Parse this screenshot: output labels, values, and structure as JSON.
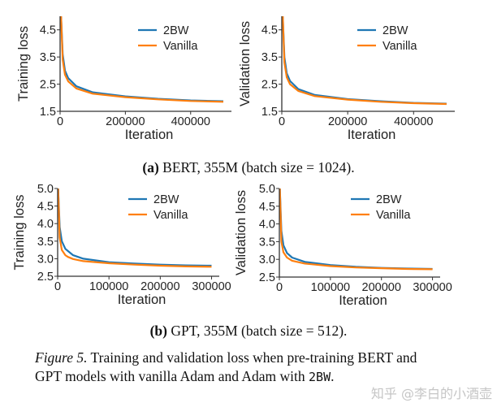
{
  "subcaptions": {
    "a_label": "(a)",
    "a_text": " BERT, 355M (batch size = 1024).",
    "b_label": "(b)",
    "b_text": " GPT, 355M (batch size = 512)."
  },
  "caption": {
    "figure_label": "Figure 5.",
    "line1": " Training and validation loss when pre-training BERT and",
    "line2": "GPT models with vanilla Adam and Adam with ",
    "code": "2BW",
    "end": "."
  },
  "watermark": "知乎 @李白的小酒壶",
  "colors": {
    "2BW": "#1f77b4",
    "Vanilla": "#ff7f0e",
    "axis": "#333333"
  },
  "chart_data": [
    {
      "type": "line",
      "panel": "(a) BERT",
      "xlabel": "Iteration",
      "ylabel": "Training loss",
      "xlim": [
        0,
        525000
      ],
      "ylim": [
        1.5,
        5.0
      ],
      "xticks": [
        0,
        200000,
        400000
      ],
      "xtick_labels": [
        "0",
        "200000",
        "400000"
      ],
      "yticks": [
        1.5,
        2.5,
        3.5,
        4.5
      ],
      "ytick_labels": [
        "1.5",
        "2.5",
        "3.5",
        "4.5"
      ],
      "grid": false,
      "legend": "top-right",
      "series": [
        {
          "name": "2BW",
          "x": [
            3000,
            8000,
            15000,
            25000,
            50000,
            100000,
            200000,
            300000,
            400000,
            500000
          ],
          "y": [
            5.0,
            3.6,
            3.0,
            2.72,
            2.42,
            2.2,
            2.05,
            1.96,
            1.9,
            1.87
          ]
        },
        {
          "name": "Vanilla",
          "x": [
            3000,
            8000,
            15000,
            25000,
            50000,
            100000,
            200000,
            300000,
            400000,
            500000
          ],
          "y": [
            5.0,
            3.4,
            2.85,
            2.6,
            2.34,
            2.15,
            2.02,
            1.94,
            1.88,
            1.85
          ]
        }
      ]
    },
    {
      "type": "line",
      "panel": "(a) BERT",
      "xlabel": "Iteration",
      "ylabel": "Validation loss",
      "xlim": [
        0,
        525000
      ],
      "ylim": [
        1.5,
        5.0
      ],
      "xticks": [
        0,
        200000,
        400000
      ],
      "xtick_labels": [
        "0",
        "200000",
        "400000"
      ],
      "yticks": [
        1.5,
        2.5,
        3.5,
        4.5
      ],
      "ytick_labels": [
        "1.5",
        "2.5",
        "3.5",
        "4.5"
      ],
      "grid": false,
      "legend": "top-right",
      "series": [
        {
          "name": "2BW",
          "x": [
            3000,
            8000,
            15000,
            25000,
            50000,
            100000,
            200000,
            300000,
            400000,
            500000
          ],
          "y": [
            5.0,
            3.5,
            2.9,
            2.62,
            2.32,
            2.1,
            1.95,
            1.87,
            1.81,
            1.78
          ]
        },
        {
          "name": "Vanilla",
          "x": [
            3000,
            8000,
            15000,
            25000,
            50000,
            100000,
            200000,
            300000,
            400000,
            500000
          ],
          "y": [
            5.0,
            3.3,
            2.75,
            2.5,
            2.25,
            2.06,
            1.93,
            1.85,
            1.8,
            1.77
          ]
        }
      ]
    },
    {
      "type": "line",
      "panel": "(b) GPT",
      "xlabel": "Iteration",
      "ylabel": "Training loss",
      "xlim": [
        0,
        315000
      ],
      "ylim": [
        2.5,
        5.0
      ],
      "xticks": [
        0,
        100000,
        200000,
        300000
      ],
      "xtick_labels": [
        "0",
        "100000",
        "200000",
        "300000"
      ],
      "yticks": [
        2.5,
        3.0,
        3.5,
        4.0,
        4.5,
        5.0
      ],
      "ytick_labels": [
        "2.5",
        "3.0",
        "3.5",
        "4.0",
        "4.5",
        "5.0"
      ],
      "grid": false,
      "legend": "top-right",
      "series": [
        {
          "name": "2BW",
          "x": [
            1000,
            4000,
            8000,
            15000,
            20000,
            30000,
            50000,
            100000,
            150000,
            200000,
            250000,
            300000
          ],
          "y": [
            5.0,
            3.9,
            3.5,
            3.28,
            3.22,
            3.1,
            3.0,
            2.9,
            2.86,
            2.83,
            2.81,
            2.8
          ]
        },
        {
          "name": "Vanilla",
          "x": [
            1000,
            4000,
            8000,
            15000,
            20000,
            30000,
            50000,
            100000,
            150000,
            200000,
            250000,
            300000
          ],
          "y": [
            5.0,
            3.6,
            3.25,
            3.1,
            3.05,
            2.99,
            2.93,
            2.87,
            2.83,
            2.8,
            2.78,
            2.77
          ]
        }
      ]
    },
    {
      "type": "line",
      "panel": "(b) GPT",
      "xlabel": "Iteration",
      "ylabel": "Validation loss",
      "xlim": [
        0,
        315000
      ],
      "ylim": [
        2.5,
        5.0
      ],
      "xticks": [
        0,
        100000,
        200000,
        300000
      ],
      "xtick_labels": [
        "0",
        "100000",
        "200000",
        "300000"
      ],
      "yticks": [
        2.5,
        3.0,
        3.5,
        4.0,
        4.5,
        5.0
      ],
      "ytick_labels": [
        "2.5",
        "3.0",
        "3.5",
        "4.0",
        "4.5",
        "5.0"
      ],
      "grid": false,
      "legend": "top-right",
      "series": [
        {
          "name": "2BW",
          "x": [
            1000,
            4000,
            8000,
            15000,
            25000,
            50000,
            100000,
            150000,
            200000,
            250000,
            300000
          ],
          "y": [
            5.0,
            3.8,
            3.4,
            3.18,
            3.05,
            2.93,
            2.84,
            2.79,
            2.76,
            2.74,
            2.73
          ]
        },
        {
          "name": "Vanilla",
          "x": [
            1000,
            4000,
            8000,
            15000,
            25000,
            50000,
            100000,
            150000,
            200000,
            250000,
            300000
          ],
          "y": [
            5.0,
            3.5,
            3.2,
            3.05,
            2.96,
            2.88,
            2.81,
            2.77,
            2.75,
            2.73,
            2.72
          ]
        }
      ]
    }
  ]
}
